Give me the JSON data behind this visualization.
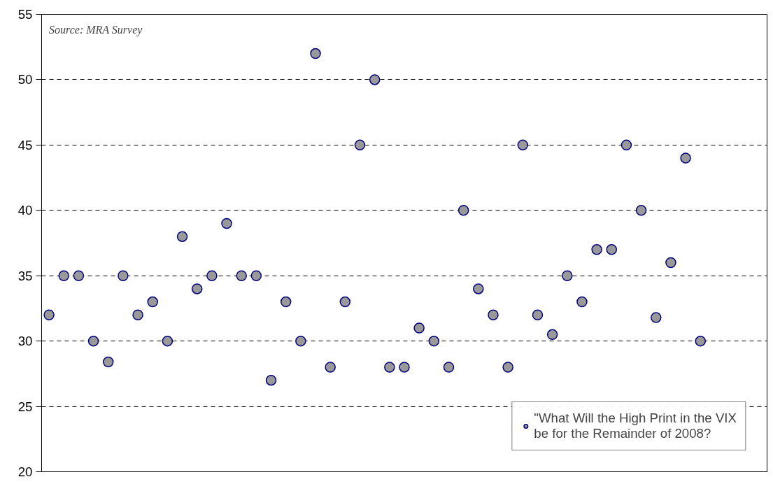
{
  "chart_data": {
    "type": "scatter",
    "categories": [
      null,
      null,
      null,
      null,
      null,
      null,
      null,
      null,
      null,
      null,
      null,
      null,
      null,
      null,
      null,
      null,
      null,
      null,
      null,
      null,
      null,
      null,
      null,
      null,
      null,
      null,
      null,
      null,
      null,
      null,
      null,
      null,
      null,
      null,
      null,
      null,
      null,
      null,
      null,
      null,
      null,
      null,
      null,
      null,
      null,
      null,
      null,
      null,
      null
    ],
    "series": [
      {
        "name": "\"What Will the High Print in the VIX\nbe for the Remainder of 2008?",
        "color": "#999999",
        "values": [
          32,
          35,
          35,
          30,
          28.4,
          35,
          32,
          33,
          30,
          38,
          34,
          35,
          39,
          35,
          35,
          27,
          33,
          30,
          52,
          28,
          33,
          45,
          50,
          28,
          28,
          31,
          30,
          28,
          40,
          34,
          32,
          28,
          45,
          32,
          30.5,
          35,
          33,
          37,
          37,
          45,
          40,
          31.8,
          36,
          44,
          30,
          null,
          null,
          null,
          null
        ]
      }
    ],
    "ylim": [
      20,
      55
    ],
    "yticks": [
      20,
      25,
      30,
      35,
      40,
      45,
      50,
      55
    ],
    "grid": "y",
    "legend": "bottom right",
    "marker": "circle",
    "tick_labels": "y",
    "annotations": [
      "Source: MRA Survey"
    ]
  }
}
